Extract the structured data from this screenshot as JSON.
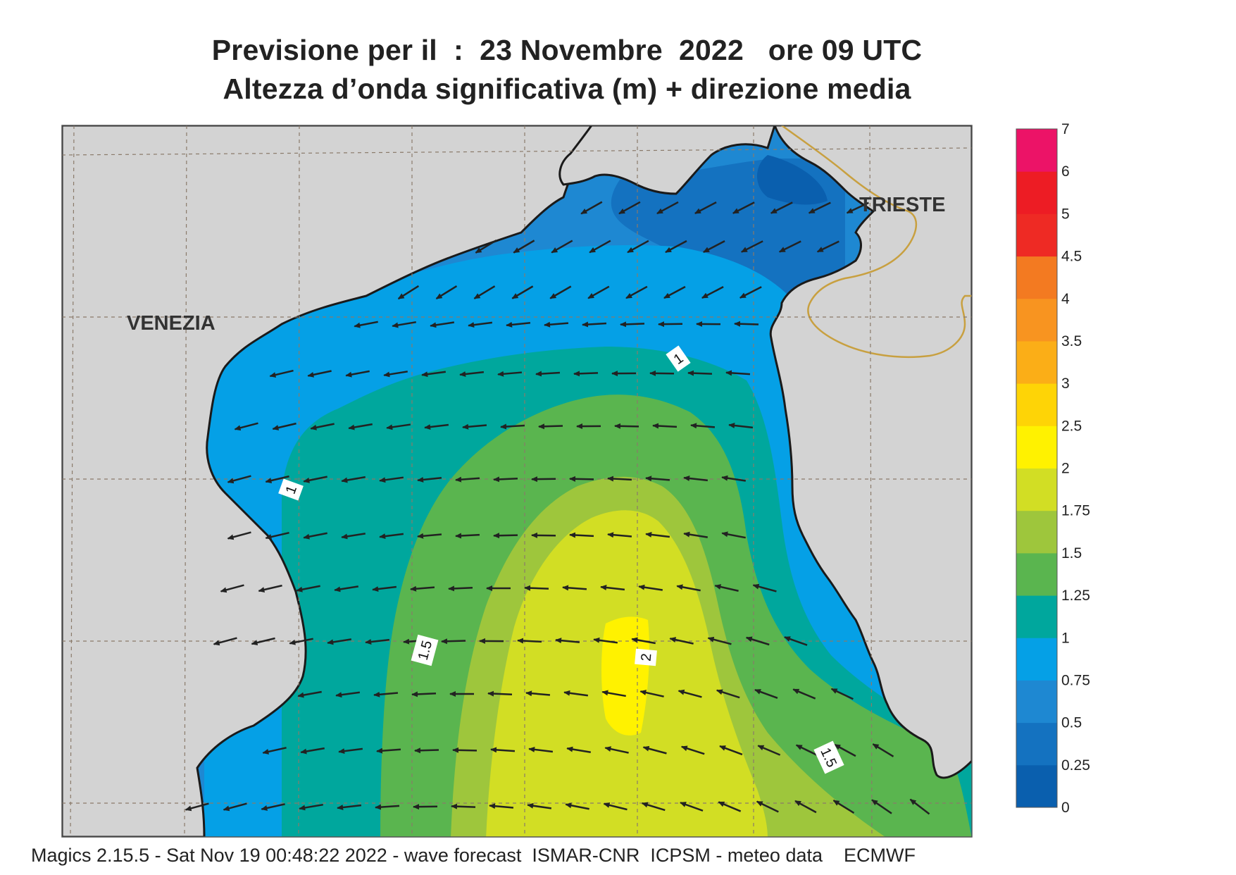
{
  "header": {
    "title_line1": "Previsione per il  :  23 Novembre  2022   ore 09 UTC",
    "title_line2": "Altezza d’onda significativa (m) + direzione media"
  },
  "footer": {
    "credit": "Magics 2.15.5 - Sat Nov 19 00:48:22 2022 - wave forecast  ISMAR-CNR  ICPSM - meteo data    ECMWF"
  },
  "map": {
    "cities": [
      {
        "name": "VENEZIA"
      },
      {
        "name": "TRIESTE"
      }
    ],
    "contour_labels": [
      "1",
      "1",
      "1.5",
      "2",
      "1.5"
    ],
    "land_color": "#d3d3d3",
    "coastline_color": "#1a1a1a",
    "border_color": "#c8a040",
    "arrow_color": "#222222",
    "mean_direction": "south-west"
  },
  "legend": {
    "levels": [
      "0",
      "0.25",
      "0.5",
      "0.75",
      "1",
      "1.25",
      "1.5",
      "1.75",
      "2",
      "2.5",
      "3",
      "3.5",
      "4",
      "4.5",
      "5",
      "6",
      "7"
    ],
    "colors": [
      "#0a5fae",
      "#1472c0",
      "#1e88d2",
      "#05a0e6",
      "#00a79d",
      "#5ab54f",
      "#9ec63c",
      "#d2de24",
      "#fff200",
      "#fed406",
      "#fbae17",
      "#f89420",
      "#f37a21",
      "#ee2a24",
      "#ed1c24",
      "#ec1367"
    ]
  }
}
